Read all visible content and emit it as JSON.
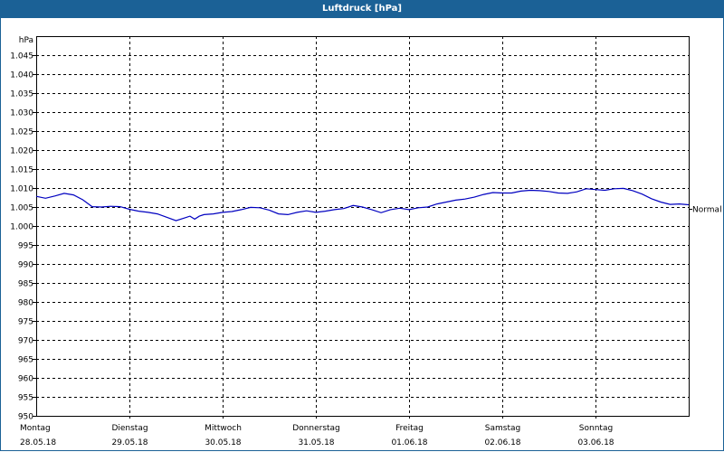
{
  "window": {
    "title": "Luftdruck [hPa]"
  },
  "colors": {
    "title_bar": "#1b6196",
    "line": "#0000c0",
    "grid": "#000000"
  },
  "chart_data": {
    "type": "line",
    "title": "Luftdruck [hPa]",
    "ylabel": "hPa",
    "xlabel": "",
    "ylim": [
      950,
      1050
    ],
    "y_ticks": [
      "1.045",
      "1.040",
      "1.035",
      "1.030",
      "1.025",
      "1.020",
      "1.015",
      "1.010",
      "1.005",
      "1.000",
      "995",
      "990",
      "985",
      "980",
      "975",
      "970",
      "965",
      "960",
      "955",
      "950"
    ],
    "x_ticks": [
      {
        "day": "Montag",
        "date": "28.05.18"
      },
      {
        "day": "Dienstag",
        "date": "29.05.18"
      },
      {
        "day": "Mittwoch",
        "date": "30.05.18"
      },
      {
        "day": "Donnerstag",
        "date": "31.05.18"
      },
      {
        "day": "Freitag",
        "date": "01.06.18"
      },
      {
        "day": "Samstag",
        "date": "02.06.18"
      },
      {
        "day": "Sonntag",
        "date": "03.06.18"
      }
    ],
    "reference_line": {
      "label": "Normal",
      "value": 1004.5
    },
    "grid": true,
    "series": [
      {
        "name": "Luftdruck",
        "x_days": [
          0,
          0.1,
          0.2,
          0.3,
          0.4,
          0.5,
          0.6,
          0.7,
          0.8,
          0.9,
          1.0,
          1.1,
          1.2,
          1.3,
          1.4,
          1.5,
          1.6,
          1.65,
          1.7,
          1.75,
          1.8,
          1.9,
          2.0,
          2.1,
          2.2,
          2.3,
          2.4,
          2.5,
          2.6,
          2.7,
          2.8,
          2.9,
          3.0,
          3.1,
          3.2,
          3.3,
          3.4,
          3.5,
          3.6,
          3.7,
          3.8,
          3.9,
          4.0,
          4.1,
          4.2,
          4.3,
          4.4,
          4.5,
          4.6,
          4.7,
          4.8,
          4.9,
          5.0,
          5.1,
          5.2,
          5.3,
          5.4,
          5.5,
          5.6,
          5.7,
          5.8,
          5.9,
          6.0,
          6.1,
          6.2,
          6.3,
          6.4,
          6.5,
          6.6,
          6.7,
          6.8,
          6.9,
          7.0
        ],
        "values": [
          1007.8,
          1007.3,
          1007.9,
          1008.6,
          1008.2,
          1006.9,
          1005.1,
          1005.0,
          1005.2,
          1005.1,
          1004.4,
          1003.9,
          1003.6,
          1003.2,
          1002.3,
          1001.4,
          1002.2,
          1002.6,
          1001.8,
          1002.6,
          1003.0,
          1003.2,
          1003.6,
          1003.8,
          1004.3,
          1004.9,
          1004.8,
          1004.2,
          1003.2,
          1003.0,
          1003.6,
          1004.0,
          1003.6,
          1003.9,
          1004.3,
          1004.6,
          1005.4,
          1005.0,
          1004.3,
          1003.5,
          1004.3,
          1004.7,
          1004.3,
          1004.8,
          1005.0,
          1005.8,
          1006.3,
          1006.8,
          1007.1,
          1007.6,
          1008.3,
          1008.8,
          1008.7,
          1008.7,
          1009.2,
          1009.4,
          1009.3,
          1009.1,
          1008.7,
          1008.6,
          1009.0,
          1009.8,
          1009.6,
          1009.4,
          1009.8,
          1009.9,
          1009.3,
          1008.4,
          1007.2,
          1006.3,
          1005.7,
          1005.8,
          1005.6
        ]
      }
    ]
  }
}
